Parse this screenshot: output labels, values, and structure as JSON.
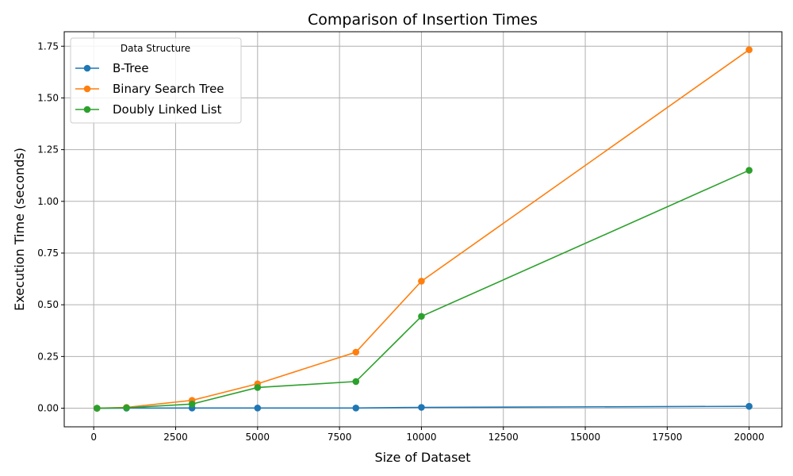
{
  "chart_data": {
    "type": "line",
    "title": "Comparison of Insertion Times",
    "xlabel": "Size of Dataset",
    "ylabel": "Execution Time (seconds)",
    "x": [
      100,
      1000,
      3000,
      5000,
      8000,
      10000,
      20000
    ],
    "xlim": [
      -900,
      21000
    ],
    "ylim": [
      -0.09,
      1.82
    ],
    "xticks": [
      0,
      2500,
      5000,
      7500,
      10000,
      12500,
      15000,
      17500,
      20000
    ],
    "xtick_labels": [
      "0",
      "2500",
      "5000",
      "7500",
      "10000",
      "12500",
      "15000",
      "17500",
      "20000"
    ],
    "yticks": [
      0,
      0.25,
      0.5,
      0.75,
      1.0,
      1.25,
      1.5,
      1.75
    ],
    "ytick_labels": [
      "0.00",
      "0.25",
      "0.50",
      "0.75",
      "1.00",
      "1.25",
      "1.50",
      "1.75"
    ],
    "grid": true,
    "legend": {
      "title": "Data Structure",
      "placement": "top-left"
    },
    "series": [
      {
        "name": "B-Tree",
        "color": "#1f77b4",
        "values": [
          0.0,
          0.0005,
          0.001,
          0.001,
          0.001,
          0.004,
          0.009
        ]
      },
      {
        "name": "Binary Search Tree",
        "color": "#ff7f0e",
        "values": [
          0.0,
          0.004,
          0.038,
          0.118,
          0.271,
          0.614,
          1.733
        ]
      },
      {
        "name": "Doubly Linked List",
        "color": "#2ca02c",
        "values": [
          0.0,
          0.002,
          0.02,
          0.1,
          0.129,
          0.444,
          1.15
        ]
      }
    ]
  }
}
